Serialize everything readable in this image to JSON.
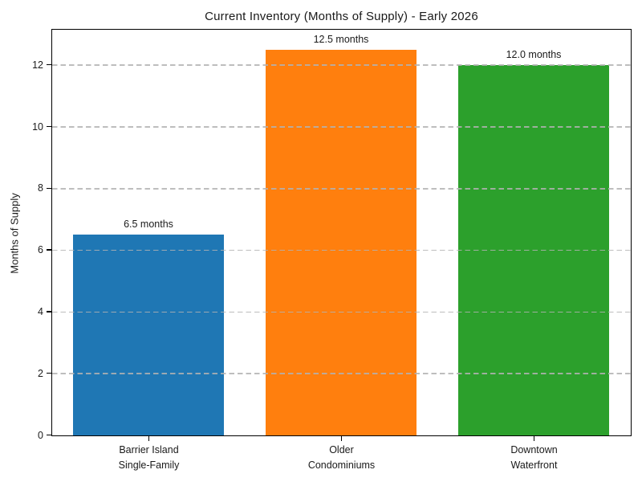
{
  "chart_data": {
    "type": "bar",
    "title": "Current Inventory (Months of Supply) - Early 2026",
    "ylabel": "Months of Supply",
    "xlabel": "",
    "categories": [
      "Barrier Island\nSingle-Family",
      "Older\nCondominiums",
      "Downtown\nWaterfront"
    ],
    "values": [
      6.5,
      12.5,
      12.0
    ],
    "bar_labels": [
      "6.5 months",
      "12.5 months",
      "12.0 months"
    ],
    "bar_colors": [
      "#1f77b4",
      "#ff7f0e",
      "#2ca02c"
    ],
    "yticks": [
      0,
      2,
      4,
      6,
      8,
      10,
      12
    ],
    "ylim": [
      0,
      13.125
    ],
    "grid": "horizontal dashed, drawn over bars",
    "gridline_color": "#b2b2b2",
    "legend": "none",
    "background_color": "#ffffff",
    "text_color": "#1a1a1a"
  }
}
